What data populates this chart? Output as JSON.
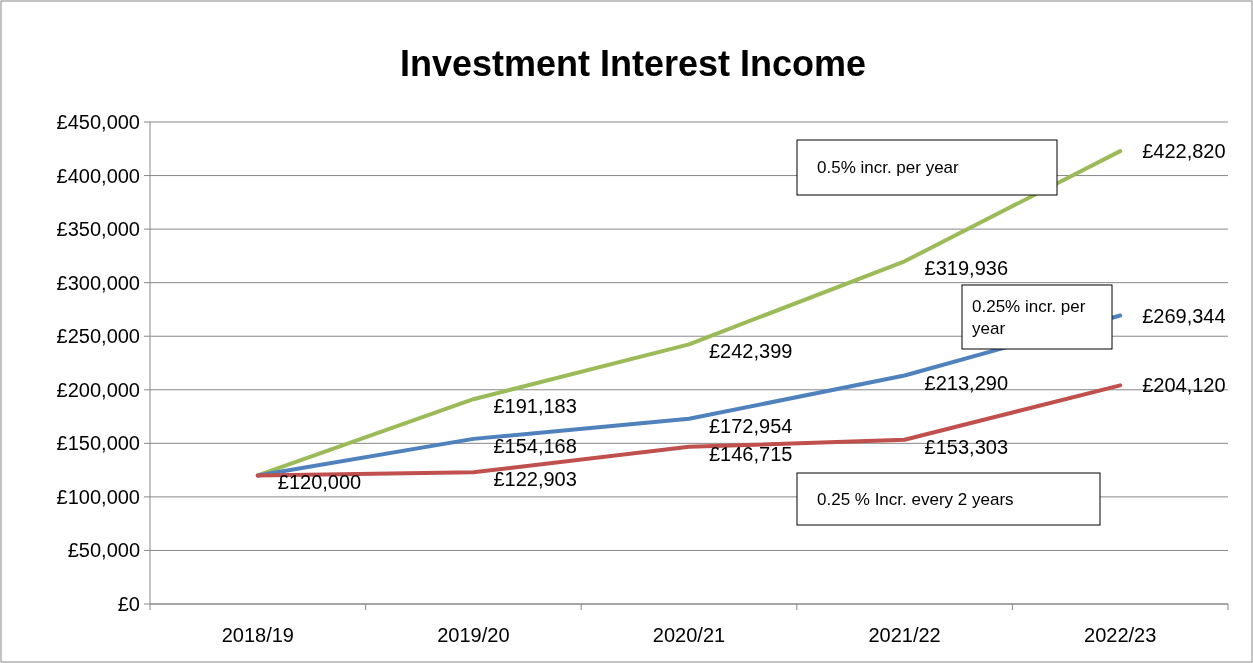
{
  "chart_data": {
    "type": "line",
    "title": "Investment Interest Income",
    "categories": [
      "2018/19",
      "2019/20",
      "2020/21",
      "2021/22",
      "2022/23"
    ],
    "series": [
      {
        "name": "0.5% incr. per year",
        "color": "#9bbb59",
        "values": [
          120000,
          191183,
          242399,
          319936,
          422820
        ],
        "value_labels": [
          "£120,000",
          "£191,183",
          "£242,399",
          "£319,936",
          "£422,820"
        ]
      },
      {
        "name": "0.25% incr. per year",
        "color": "#4f81bd",
        "values": [
          120000,
          154168,
          172954,
          213290,
          269344
        ],
        "value_labels": [
          null,
          "£154,168",
          "£172,954",
          "£213,290",
          "£269,344"
        ]
      },
      {
        "name": "0.25 % Incr. every 2 years",
        "color": "#c0504d",
        "values": [
          120000,
          122903,
          146715,
          153303,
          204120
        ],
        "value_labels": [
          null,
          "£122,903",
          "£146,715",
          "£153,303",
          "£204,120"
        ]
      }
    ],
    "ylim": [
      0,
      450000
    ],
    "yticks": [
      {
        "value": 0,
        "label": "£0"
      },
      {
        "value": 50000,
        "label": "£50,000"
      },
      {
        "value": 100000,
        "label": "£100,000"
      },
      {
        "value": 150000,
        "label": "£150,000"
      },
      {
        "value": 200000,
        "label": "£200,000"
      },
      {
        "value": 250000,
        "label": "£250,000"
      },
      {
        "value": 300000,
        "label": "£300,000"
      },
      {
        "value": 350000,
        "label": "£350,000"
      },
      {
        "value": 400000,
        "label": "£400,000"
      },
      {
        "value": 450000,
        "label": "£450,000"
      }
    ],
    "grid": "y",
    "legend": false,
    "marker": "none",
    "line_style": "solid"
  }
}
